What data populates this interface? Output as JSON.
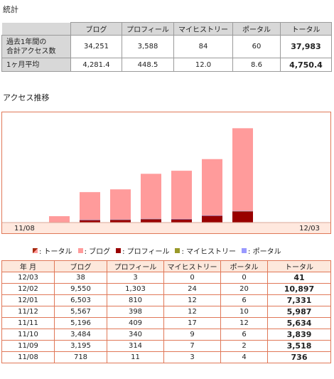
{
  "stats": {
    "title": "統計",
    "columns": [
      "ブログ",
      "プロフィール",
      "マイヒストリー",
      "ポータル",
      "トータル"
    ],
    "rows": [
      {
        "label_line1": "過去1年間の",
        "label_line2": "合計アクセス数",
        "values": [
          "34,251",
          "3,588",
          "84",
          "60"
        ],
        "total": "37,983"
      },
      {
        "label_line1": "1ヶ月平均",
        "label_line2": "",
        "values": [
          "4,281.4",
          "448.5",
          "12.0",
          "8.6"
        ],
        "total": "4,750.4"
      }
    ]
  },
  "access": {
    "title": "アクセス推移"
  },
  "legend": {
    "total": ": トータル",
    "blog": ": ブログ",
    "profile": ": プロフィール",
    "history": ": マイヒストリー",
    "portal": ": ポータル"
  },
  "colors": {
    "blog": "#ff9b9b",
    "profile": "#990000",
    "history": "#99992a",
    "portal": "#9999ff",
    "border": "#e07858",
    "header_bg": "#fde8dc"
  },
  "chart_data": {
    "type": "bar",
    "stacked": true,
    "categories": [
      "11/08",
      "11/09",
      "11/10",
      "11/11",
      "11/12",
      "12/01",
      "12/02",
      "12/03"
    ],
    "x_start_label": "11/08",
    "x_end_label": "12/03",
    "series": [
      {
        "name": "ブログ",
        "values": [
          718,
          3195,
          3484,
          5196,
          5567,
          6503,
          9550,
          38
        ]
      },
      {
        "name": "プロフィール",
        "values": [
          11,
          314,
          340,
          409,
          398,
          810,
          1303,
          3
        ]
      },
      {
        "name": "マイヒストリー",
        "values": [
          3,
          7,
          9,
          17,
          12,
          12,
          24,
          0
        ]
      },
      {
        "name": "ポータル",
        "values": [
          4,
          2,
          6,
          12,
          10,
          6,
          20,
          0
        ]
      }
    ],
    "totals": [
      736,
      3518,
      3839,
      5634,
      5987,
      7331,
      10897,
      41
    ],
    "ylim": [
      0,
      11500
    ],
    "grid": false
  },
  "history": {
    "columns": [
      "年 月",
      "ブログ",
      "プロフィール",
      "マイヒストリー",
      "ポータル",
      "トータル"
    ],
    "rows": [
      [
        "12/03",
        "38",
        "3",
        "0",
        "0",
        "41"
      ],
      [
        "12/02",
        "9,550",
        "1,303",
        "24",
        "20",
        "10,897"
      ],
      [
        "12/01",
        "6,503",
        "810",
        "12",
        "6",
        "7,331"
      ],
      [
        "11/12",
        "5,567",
        "398",
        "12",
        "10",
        "5,987"
      ],
      [
        "11/11",
        "5,196",
        "409",
        "17",
        "12",
        "5,634"
      ],
      [
        "11/10",
        "3,484",
        "340",
        "9",
        "6",
        "3,839"
      ],
      [
        "11/09",
        "3,195",
        "314",
        "7",
        "2",
        "3,518"
      ],
      [
        "11/08",
        "718",
        "11",
        "3",
        "4",
        "736"
      ]
    ]
  }
}
